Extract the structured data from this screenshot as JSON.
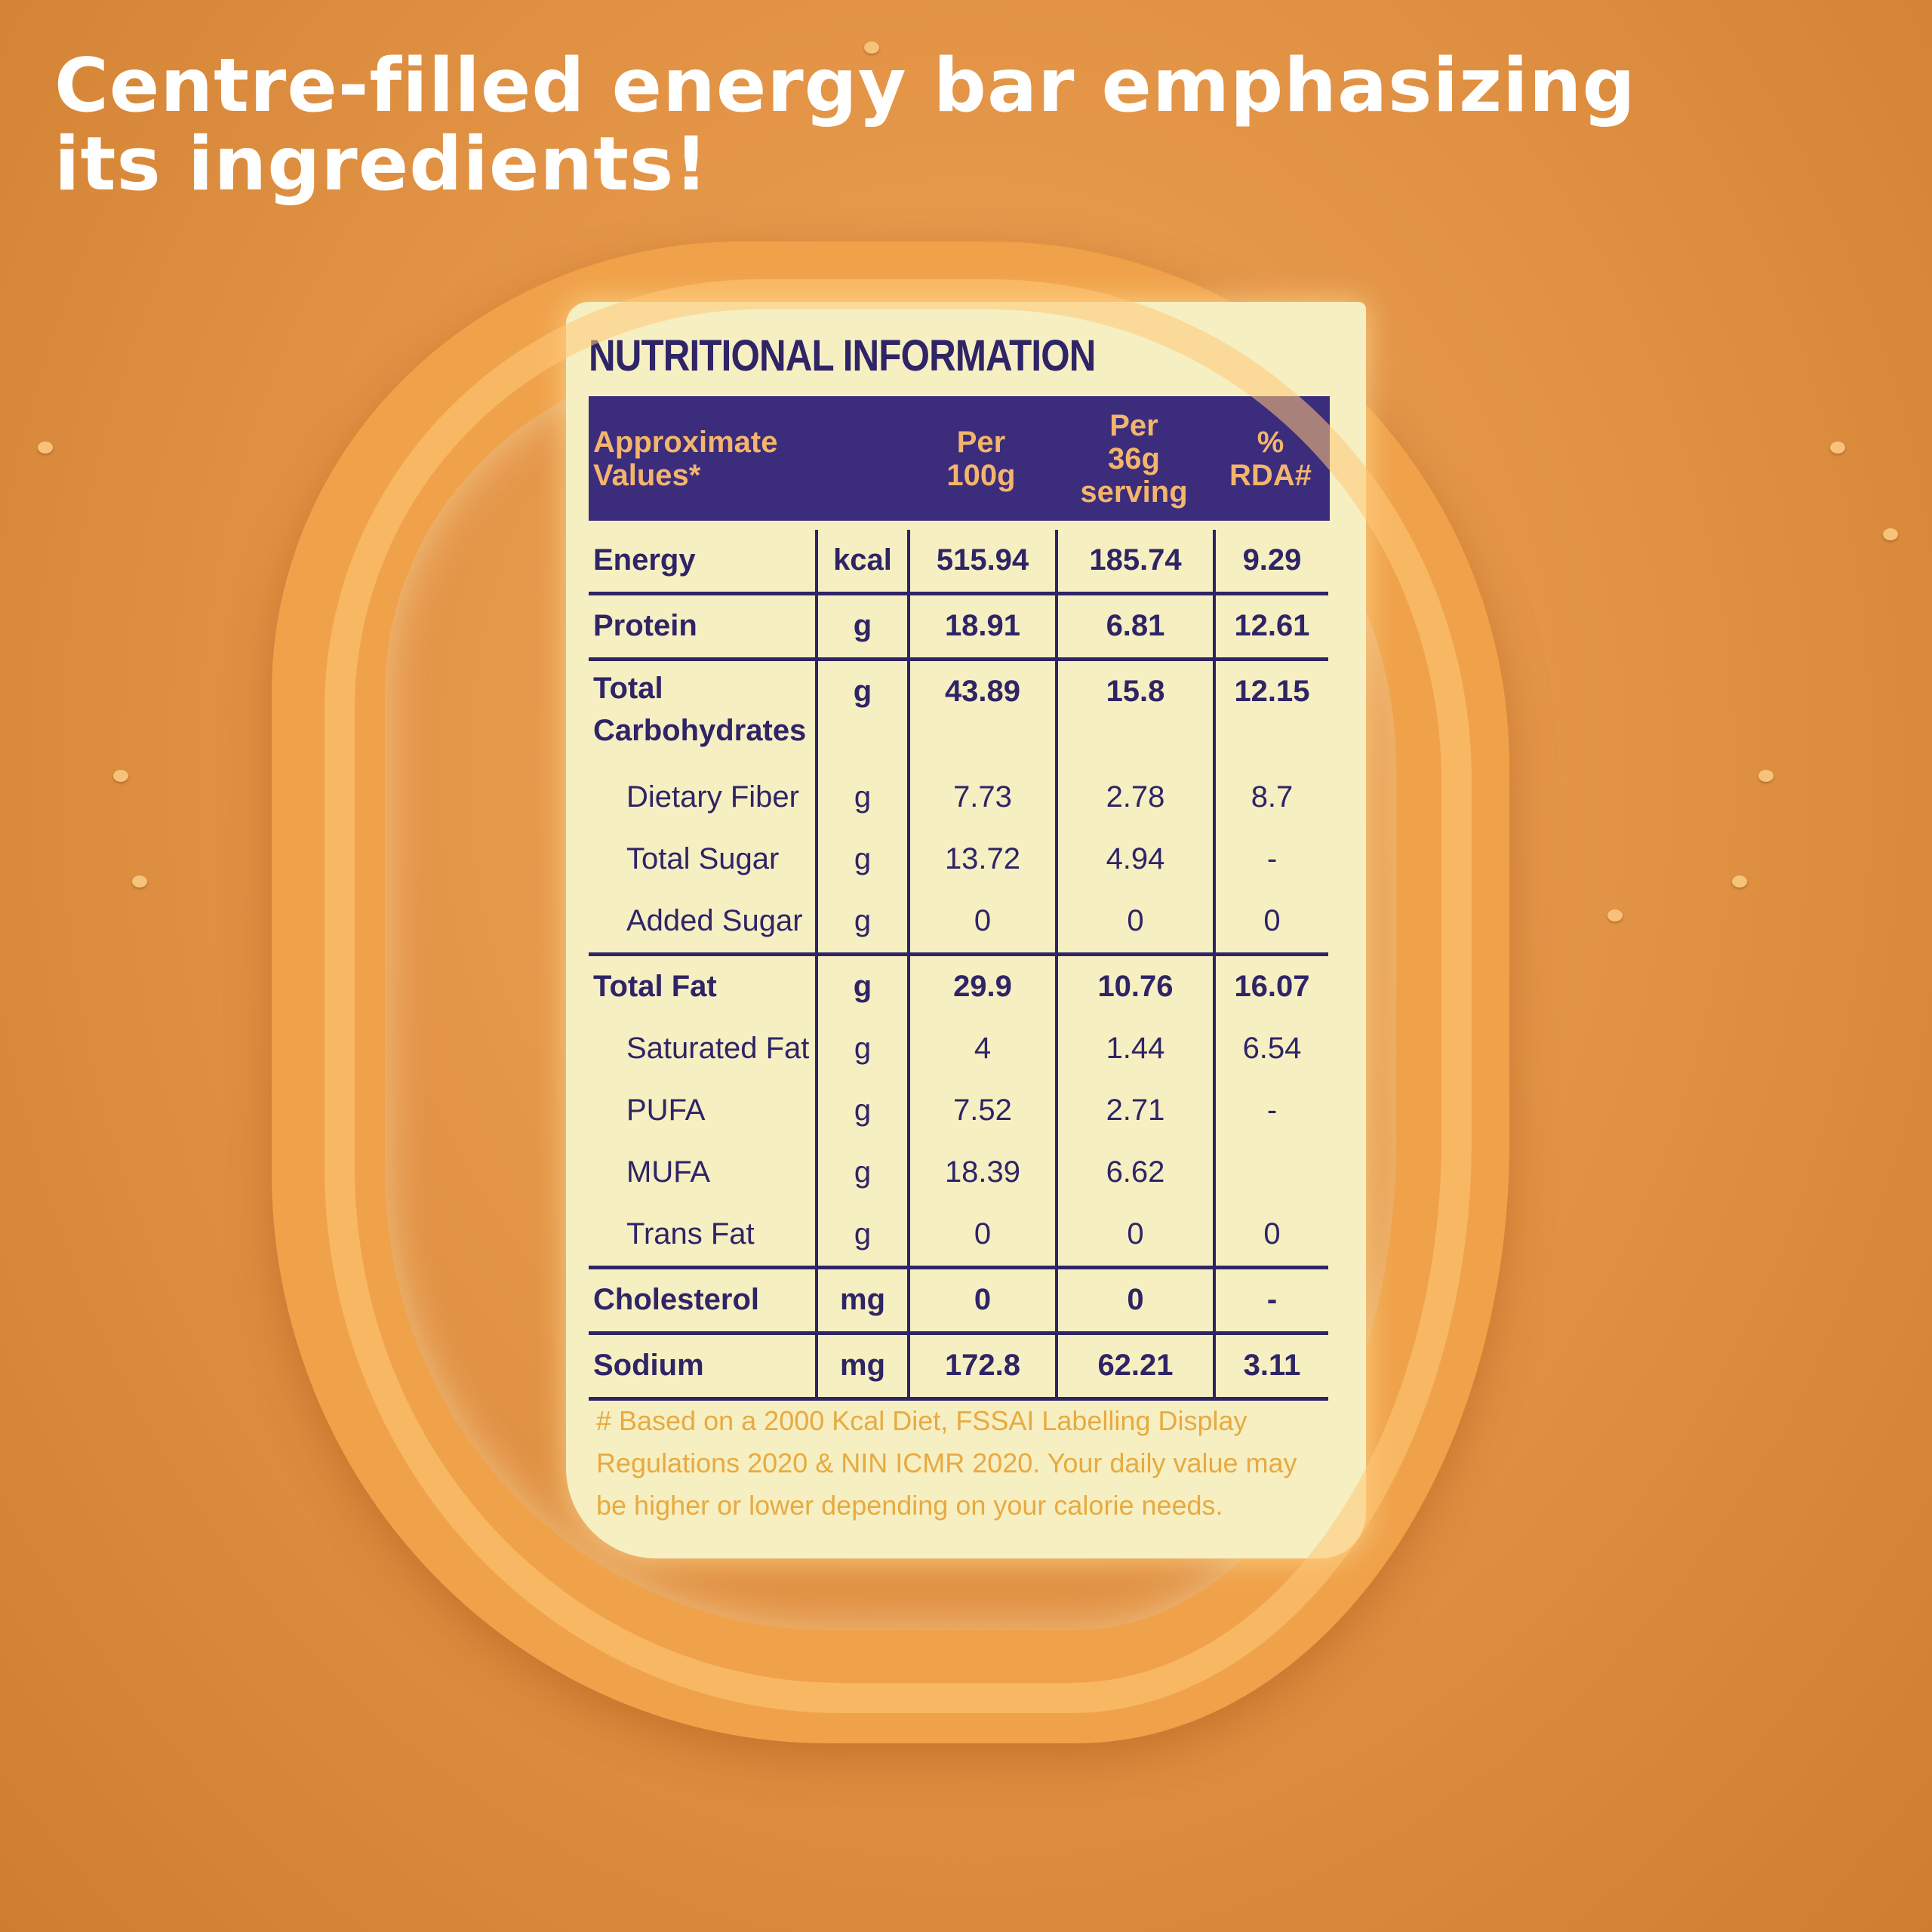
{
  "headline": {
    "line1": "Centre-filled energy bar emphasizing",
    "line2": "its ingredients!"
  },
  "colors": {
    "background": "#e39446",
    "label": "#f6efc2",
    "header_band": "#3c2c7c",
    "text": "#2e2466",
    "header_text": "#f3b56c"
  },
  "label": {
    "title": "NUTRITIONAL INFORMATION",
    "headers": [
      "Approximate\nValues*",
      "",
      "Per\n100g",
      "Per\n36g\nserving",
      "%\nRDA#"
    ],
    "rows": [
      {
        "name": "Energy",
        "unit": "kcal",
        "per100g": "515.94",
        "per36g": "185.74",
        "rda": "9.29",
        "bold": true,
        "indent": false,
        "divider": true
      },
      {
        "name": "Protein",
        "unit": "g",
        "per100g": "18.91",
        "per36g": "6.81",
        "rda": "12.61",
        "bold": true,
        "indent": false,
        "divider": true
      },
      {
        "name": "Total Carbohydrates",
        "unit": "g",
        "per100g": "43.89",
        "per36g": "15.8",
        "rda": "12.15",
        "bold": true,
        "indent": false,
        "divider": false,
        "tall": true
      },
      {
        "name": "Dietary Fiber",
        "unit": "g",
        "per100g": "7.73",
        "per36g": "2.78",
        "rda": "8.7",
        "bold": false,
        "indent": true,
        "divider": false
      },
      {
        "name": "Total Sugar",
        "unit": "g",
        "per100g": "13.72",
        "per36g": "4.94",
        "rda": "-",
        "bold": false,
        "indent": true,
        "divider": false
      },
      {
        "name": "Added Sugar",
        "unit": "g",
        "per100g": "0",
        "per36g": "0",
        "rda": "0",
        "bold": false,
        "indent": true,
        "divider": true
      },
      {
        "name": "Total Fat",
        "unit": "g",
        "per100g": "29.9",
        "per36g": "10.76",
        "rda": "16.07",
        "bold": true,
        "indent": false,
        "divider": false
      },
      {
        "name": "Saturated Fat",
        "unit": "g",
        "per100g": "4",
        "per36g": "1.44",
        "rda": "6.54",
        "bold": false,
        "indent": true,
        "divider": false
      },
      {
        "name": "PUFA",
        "unit": "g",
        "per100g": "7.52",
        "per36g": "2.71",
        "rda": "-",
        "bold": false,
        "indent": true,
        "divider": false
      },
      {
        "name": "MUFA",
        "unit": "g",
        "per100g": "18.39",
        "per36g": "6.62",
        "rda": "",
        "bold": false,
        "indent": true,
        "divider": false
      },
      {
        "name": "Trans Fat",
        "unit": "g",
        "per100g": "0",
        "per36g": "0",
        "rda": "0",
        "bold": false,
        "indent": true,
        "divider": true
      },
      {
        "name": "Cholesterol",
        "unit": "mg",
        "per100g": "0",
        "per36g": "0",
        "rda": "-",
        "bold": true,
        "indent": false,
        "divider": true
      },
      {
        "name": "Sodium",
        "unit": "mg",
        "per100g": "172.8",
        "per36g": "62.21",
        "rda": "3.11",
        "bold": true,
        "indent": false,
        "divider": true
      }
    ],
    "footnote": "# Based on a 2000 Kcal Diet, FSSAI Labelling  Display Regulations 2020 & NIN ICMR 2020. Your daily value may be higher or lower depending on your calorie needs."
  }
}
